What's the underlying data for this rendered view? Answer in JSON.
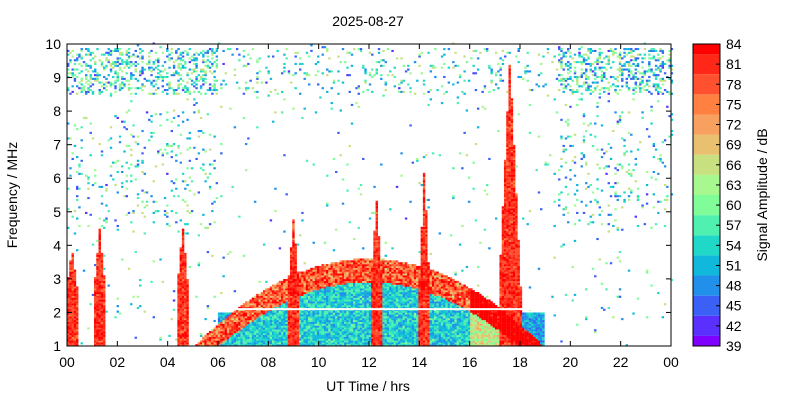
{
  "chart_data": {
    "type": "heatmap",
    "title": "2025-08-27",
    "xlabel": "UT Time / hrs",
    "ylabel": "Frequency / MHz",
    "colorbar_label": "Signal Amplitude / dB",
    "xlim": [
      0,
      24
    ],
    "ylim": [
      1,
      10
    ],
    "x_ticks": [
      "00",
      "02",
      "04",
      "06",
      "08",
      "10",
      "12",
      "14",
      "16",
      "18",
      "20",
      "22",
      "00"
    ],
    "y_ticks": [
      "1",
      "2",
      "3",
      "4",
      "5",
      "6",
      "7",
      "8",
      "9",
      "10"
    ],
    "colorbar": {
      "levels": [
        39,
        42,
        45,
        48,
        51,
        54,
        57,
        60,
        63,
        66,
        69,
        72,
        75,
        78,
        81,
        84
      ],
      "colors": [
        "#8000ff",
        "#5a30ff",
        "#3a60f5",
        "#2090ea",
        "#10b8dc",
        "#20d8c8",
        "#50f0b0",
        "#80fc98",
        "#a8f890",
        "#c8e080",
        "#e8c070",
        "#f8a060",
        "#ff8040",
        "#ff5030",
        "#ff2818",
        "#ff0000"
      ]
    },
    "summary": {
      "daytime_band_hours": [
        4.5,
        19.5
      ],
      "night_sporadic_upper_band_mhz": [
        8.5,
        9.8
      ],
      "strongest_spike": {
        "hour": 17.6,
        "top_mhz": 9.6,
        "amplitude_db": 84
      },
      "secondary_spikes": [
        {
          "hour": 1.3,
          "top_mhz": 4.5
        },
        {
          "hour": 4.6,
          "top_mhz": 4.6
        },
        {
          "hour": 12.3,
          "top_mhz": 5.4
        },
        {
          "hour": 14.2,
          "top_mhz": 6.4
        }
      ],
      "white_gap_line_mhz": 2.1
    }
  }
}
